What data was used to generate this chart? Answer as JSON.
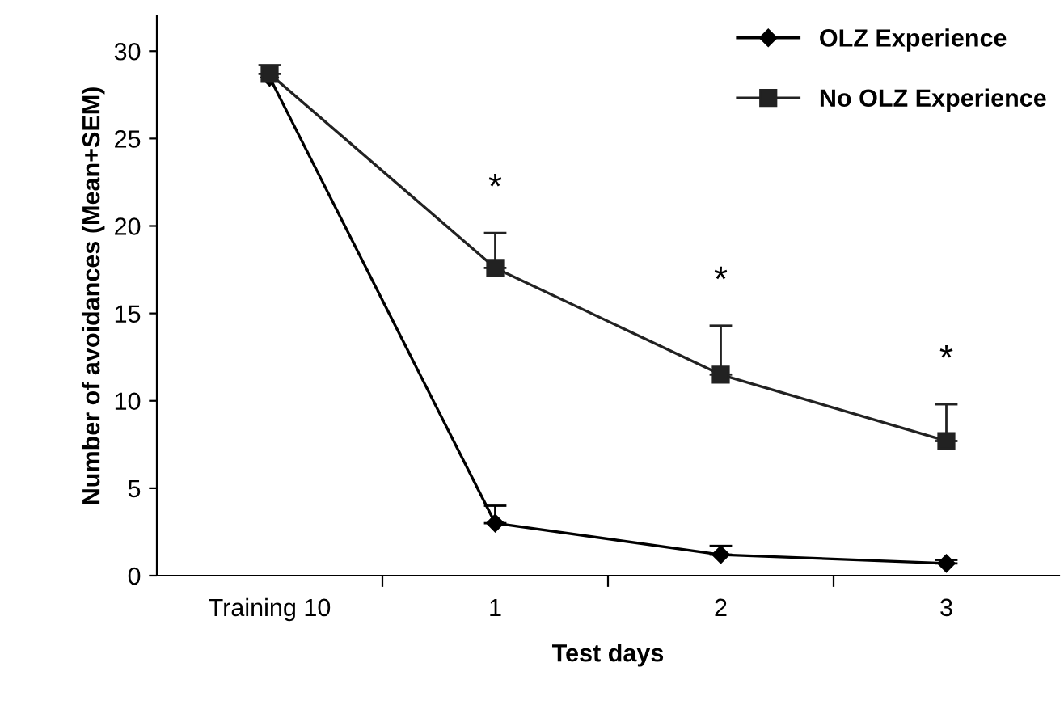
{
  "chart_data": {
    "type": "line",
    "xlabel": "Test days",
    "ylabel": "Number of avoidances (Mean+SEM)",
    "categories": [
      "Training 10",
      "1",
      "2",
      "3"
    ],
    "series": [
      {
        "name": "OLZ Experience",
        "color": "#000000",
        "marker": "diamond",
        "values": [
          28.5,
          3.0,
          1.2,
          0.7
        ],
        "errors": [
          null,
          [
            3.0,
            4.0
          ],
          [
            1.2,
            1.7
          ],
          [
            0.7,
            0.9
          ]
        ]
      },
      {
        "name": "No OLZ Experience",
        "color": "#222222",
        "marker": "square",
        "values": [
          28.7,
          17.6,
          11.5,
          7.7
        ],
        "errors": [
          [
            28.7,
            29.2
          ],
          [
            17.6,
            19.6
          ],
          [
            11.5,
            14.3
          ],
          [
            7.7,
            9.8
          ]
        ]
      }
    ],
    "ylim": [
      0,
      32
    ],
    "yticks": [
      0,
      5,
      10,
      15,
      20,
      25,
      30
    ],
    "grid": false,
    "legend": "top right",
    "line_style": "solid",
    "annotations": [
      "*",
      "*",
      "*"
    ]
  }
}
